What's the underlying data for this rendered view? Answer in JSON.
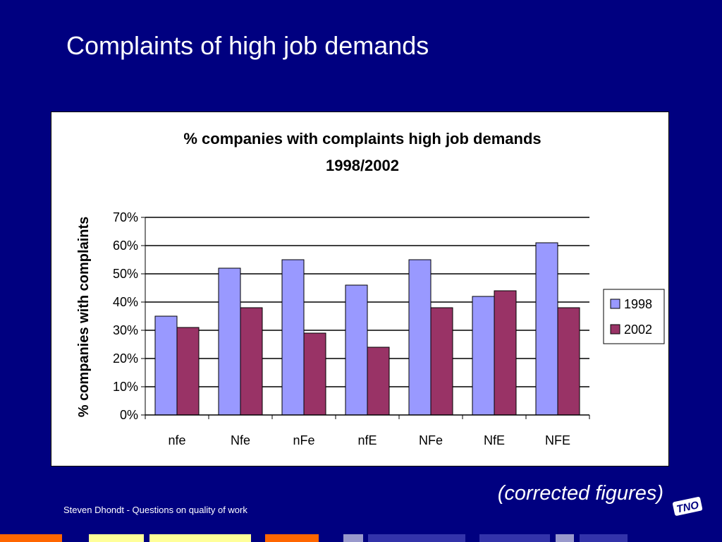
{
  "slide": {
    "title": "Complaints of high job demands",
    "note": "(corrected figures)",
    "footer": "Steven Dhondt - Questions on quality of work",
    "logo_text": "TNO"
  },
  "colors": {
    "background": "#000080",
    "series_1998": "#9999ff",
    "series_2002": "#993366"
  },
  "chart_data": {
    "type": "bar",
    "title": "% companies with complaints high job demands",
    "subtitle": "1998/2002",
    "xlabel": "",
    "ylabel": "% companies with complaints",
    "categories": [
      "nfe",
      "Nfe",
      "nFe",
      "nfE",
      "NFe",
      "NfE",
      "NFE"
    ],
    "series": [
      {
        "name": "1998",
        "values": [
          35,
          52,
          55,
          46,
          55,
          42,
          61
        ]
      },
      {
        "name": "2002",
        "values": [
          31,
          38,
          29,
          24,
          38,
          44,
          38
        ]
      }
    ],
    "ylim": [
      0,
      70
    ],
    "yticks": [
      0,
      10,
      20,
      30,
      40,
      50,
      60,
      70
    ],
    "ytick_labels": [
      "0%",
      "10%",
      "20%",
      "30%",
      "40%",
      "50%",
      "60%",
      "70%"
    ],
    "grid": true,
    "legend": "right"
  }
}
